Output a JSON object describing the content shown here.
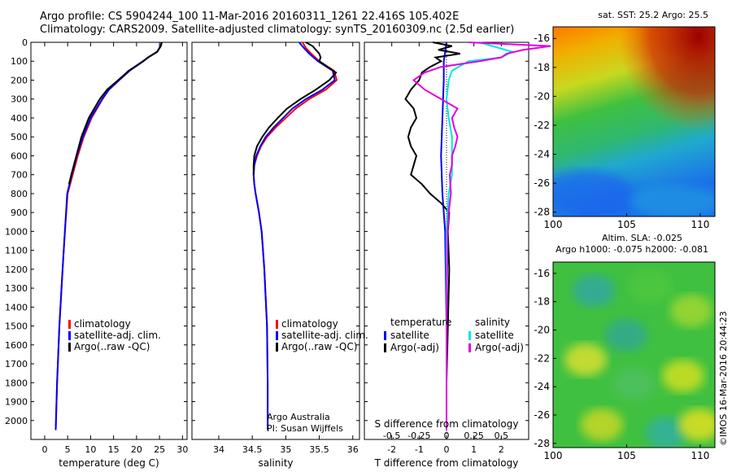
{
  "header": {
    "line1": "Argo profile: CS 5904244_100 11-Mar-2016 20160311_1261 22.416S 105.402E",
    "line2": "Climatology: CARS2009. Satellite-adjusted climatology: synTS_20160309.nc (2.5d earlier)"
  },
  "watermark": "©IMOS 16-Mar-2016 20:44:23",
  "colors": {
    "climatology": "#ff0000",
    "satellite": "#0000ff",
    "argo": "#000000",
    "sal_satellite": "#00e5e5",
    "sal_argo": "#e000e0"
  },
  "chart_data": [
    {
      "type": "line",
      "xlabel": "temperature (deg C)",
      "ylabel": "",
      "xlim": [
        -3,
        31
      ],
      "ylim": [
        2100,
        0
      ],
      "xticks": [
        0,
        5,
        10,
        15,
        20,
        25,
        30
      ],
      "yticks": [
        0,
        100,
        200,
        300,
        400,
        500,
        600,
        700,
        800,
        900,
        1000,
        1100,
        1200,
        1300,
        1400,
        1500,
        1600,
        1700,
        1800,
        1900,
        2000
      ],
      "legend": [
        "climatology",
        "satellite-adj. clim.",
        "Argo(..raw -QC)"
      ],
      "series": [
        {
          "name": "climatology",
          "depth": [
            0,
            20,
            50,
            80,
            100,
            150,
            200,
            250,
            300,
            400,
            500,
            600,
            700,
            800,
            1000,
            1200,
            1500,
            1800,
            2050
          ],
          "values": [
            25.5,
            25.2,
            24.5,
            22.5,
            21.5,
            18.5,
            16.2,
            14.0,
            12.6,
            10.2,
            8.5,
            7.2,
            6.1,
            5.0,
            4.4,
            3.9,
            3.2,
            2.7,
            2.4
          ]
        },
        {
          "name": "satellite-adj. clim.",
          "depth": [
            0,
            20,
            50,
            80,
            100,
            150,
            200,
            250,
            300,
            400,
            500,
            600,
            700,
            800,
            1000,
            1200,
            1500,
            1800,
            2050
          ],
          "values": [
            25.5,
            25.2,
            24.5,
            22.5,
            21.5,
            18.5,
            16.2,
            14.0,
            12.5,
            10.0,
            8.3,
            7.0,
            5.9,
            4.9,
            4.4,
            3.9,
            3.2,
            2.7,
            2.4
          ]
        },
        {
          "name": "Argo(..raw -QC)",
          "depth": [
            0,
            20,
            50,
            80,
            100,
            150,
            200,
            250,
            300,
            400,
            500,
            600,
            700,
            750
          ],
          "values": [
            25.5,
            25.3,
            24.5,
            22.5,
            21.4,
            18.3,
            16.0,
            13.6,
            12.0,
            9.6,
            8.0,
            6.9,
            5.8,
            5.3
          ]
        }
      ]
    },
    {
      "type": "line",
      "xlabel": "salinity",
      "ylabel": "",
      "xlim": [
        33.6,
        36.1
      ],
      "ylim": [
        2100,
        0
      ],
      "xticks": [
        34,
        34.5,
        35,
        35.5,
        36
      ],
      "xtick_labels": [
        "34",
        "34.5",
        "35",
        "35.5",
        "36"
      ],
      "legend": [
        "climatology",
        "satellite-adj. clim.",
        "Argo(..raw -QC)"
      ],
      "annotation": [
        "Argo Australia",
        "PI: Susan Wijffels"
      ],
      "series": [
        {
          "name": "climatology",
          "depth": [
            0,
            30,
            60,
            100,
            150,
            200,
            250,
            300,
            350,
            400,
            450,
            500,
            550,
            600,
            650,
            700,
            750,
            800,
            900,
            1000,
            1200,
            1500,
            1800,
            2050
          ],
          "values": [
            35.25,
            35.3,
            35.38,
            35.5,
            35.72,
            35.76,
            35.6,
            35.35,
            35.15,
            35.0,
            34.85,
            34.72,
            34.63,
            34.57,
            34.53,
            34.52,
            34.53,
            34.55,
            34.6,
            34.64,
            34.68,
            34.72,
            34.73,
            34.73
          ]
        },
        {
          "name": "satellite-adj. clim.",
          "depth": [
            0,
            30,
            60,
            100,
            150,
            200,
            250,
            300,
            350,
            400,
            450,
            500,
            550,
            600,
            650,
            700,
            750,
            800,
            900,
            1000,
            1200,
            1500,
            1800,
            2050
          ],
          "values": [
            35.2,
            35.27,
            35.35,
            35.48,
            35.7,
            35.73,
            35.55,
            35.3,
            35.1,
            34.96,
            34.82,
            34.7,
            34.62,
            34.56,
            34.53,
            34.52,
            34.53,
            34.55,
            34.6,
            34.64,
            34.68,
            34.72,
            34.73,
            34.73
          ]
        },
        {
          "name": "Argo(..raw -QC)",
          "depth": [
            0,
            20,
            40,
            60,
            80,
            100,
            130,
            160,
            200,
            250,
            300,
            350,
            400,
            450,
            500,
            550,
            600,
            650,
            700
          ],
          "values": [
            35.3,
            35.4,
            35.45,
            35.5,
            35.52,
            35.5,
            35.62,
            35.75,
            35.65,
            35.45,
            35.22,
            35.02,
            34.88,
            34.75,
            34.65,
            34.57,
            34.53,
            34.52,
            34.52
          ]
        }
      ]
    },
    {
      "type": "line",
      "xlabel": "T difference from climatology",
      "x2label": "S difference from climatology",
      "xlim": [
        -3,
        3
      ],
      "ylim": [
        2100,
        0
      ],
      "xticks": [
        -2,
        -1,
        0,
        1,
        2
      ],
      "s_ticks": [
        -0.5,
        -0.25,
        0,
        0.25,
        0.5
      ],
      "s_tick_labels": [
        "-0.5",
        "-0.25",
        "0",
        "0.25",
        "0.5"
      ],
      "legend_titles": [
        "temperature",
        "salinity"
      ],
      "legend": [
        "satellite",
        "Argo(-adj)",
        "satellite",
        "Argo(-adj)"
      ],
      "series": [
        {
          "name": "satellite",
          "group": "temperature",
          "depth": [
            0,
            50,
            100,
            200,
            400,
            600,
            800,
            1000,
            1500,
            2050
          ],
          "values": [
            0,
            -0.05,
            -0.1,
            -0.1,
            -0.15,
            -0.2,
            -0.15,
            -0.05,
            0,
            0
          ]
        },
        {
          "name": "Argo(-adj)",
          "group": "temperature",
          "depth": [
            0,
            20,
            40,
            60,
            80,
            100,
            130,
            160,
            200,
            250,
            300,
            350,
            400,
            450,
            500,
            550,
            600,
            650,
            700,
            750,
            800,
            850,
            900,
            1000,
            1200,
            1500,
            1800,
            2050
          ],
          "values": [
            -0.5,
            0.2,
            -0.3,
            0.5,
            -0.4,
            -0.2,
            -0.6,
            -0.9,
            -1.0,
            -1.3,
            -1.5,
            -1.2,
            -1.1,
            -1.3,
            -1.4,
            -1.3,
            -1.1,
            -1.2,
            -1.3,
            -0.9,
            -0.6,
            -0.2,
            0.1,
            0.05,
            0.1,
            0.05,
            0,
            0
          ]
        },
        {
          "name": "satellite",
          "group": "salinity",
          "depth": [
            0,
            50,
            80,
            100,
            150,
            200,
            300,
            400,
            500,
            600,
            700,
            800,
            1000,
            1500,
            2050
          ],
          "values": [
            0.3,
            0.6,
            0.5,
            0.2,
            0.05,
            0.02,
            0,
            0.02,
            0.05,
            0.05,
            0.05,
            0.02,
            0,
            0,
            0
          ]
        },
        {
          "name": "Argo(-adj)",
          "group": "salinity",
          "depth": [
            0,
            20,
            40,
            60,
            80,
            100,
            130,
            160,
            200,
            250,
            300,
            350,
            400,
            450,
            500,
            550,
            600,
            650,
            700,
            800,
            850,
            900,
            1000,
            1500,
            2050
          ],
          "values": [
            0.2,
            0.95,
            0.7,
            0.55,
            0.5,
            0.3,
            -0.05,
            -0.2,
            -0.3,
            -0.2,
            -0.05,
            0.1,
            0.05,
            0.07,
            0.1,
            0.08,
            0.05,
            0.05,
            0.03,
            0.04,
            0.03,
            0.02,
            0.01,
            0,
            0
          ]
        }
      ]
    },
    {
      "type": "heatmap",
      "title": "sat. SST: 25.2  Argo: 25.5",
      "xlim": [
        100,
        111
      ],
      "ylim": [
        -28.3,
        -15.2
      ],
      "xticks": [
        100,
        105,
        110
      ],
      "yticks": [
        -16,
        -18,
        -20,
        -22,
        -24,
        -26,
        -28
      ],
      "description_colors": [
        "#8b0000",
        "#ff6000",
        "#f0c000",
        "#a0d030",
        "#30c030",
        "#20a0d0",
        "#1060ff"
      ]
    },
    {
      "type": "heatmap",
      "title": "Altim. SLA: -0.025",
      "subtitle": "Argo h1000: -0.075 h2000: -0.081",
      "xlim": [
        100,
        111
      ],
      "ylim": [
        -28.3,
        -15.2
      ],
      "xticks": [
        100,
        105,
        110
      ],
      "yticks": [
        -16,
        -18,
        -20,
        -22,
        -24,
        -26,
        -28
      ]
    }
  ]
}
